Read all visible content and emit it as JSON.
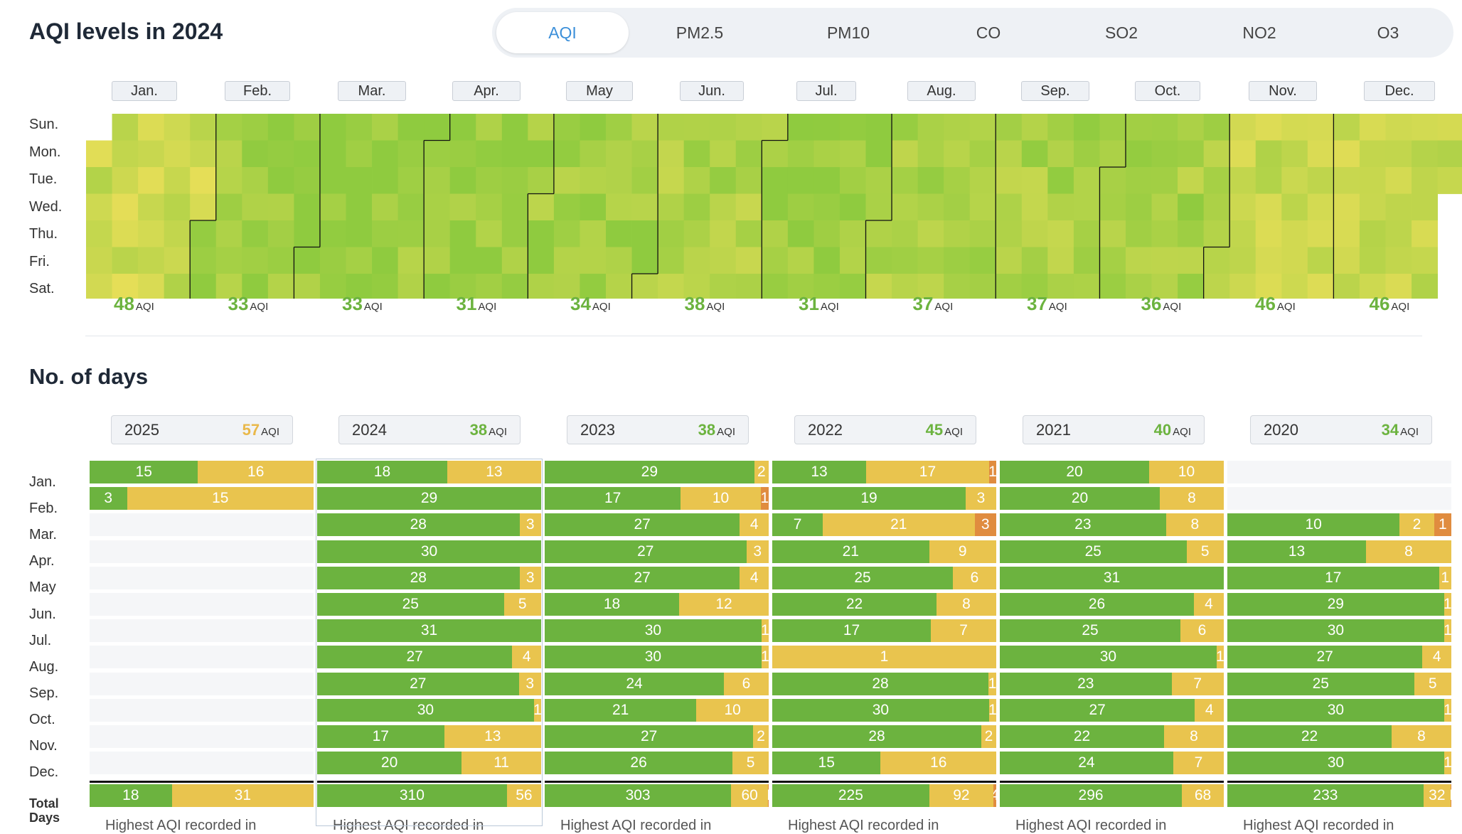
{
  "header": {
    "title": "AQI levels in 2024",
    "tabs": [
      "AQI",
      "PM2.5",
      "PM10",
      "CO",
      "SO2",
      "NO2",
      "O3"
    ],
    "active_tab": 0
  },
  "calendar": {
    "months": [
      "Jan.",
      "Feb.",
      "Mar.",
      "Apr.",
      "May",
      "Jun.",
      "Jul.",
      "Aug.",
      "Sep.",
      "Oct.",
      "Nov.",
      "Dec."
    ],
    "days": [
      "Sun.",
      "Mon.",
      "Tue.",
      "Wed.",
      "Thu.",
      "Fri.",
      "Sat."
    ],
    "monthly_avg": [
      48,
      33,
      33,
      31,
      34,
      38,
      31,
      37,
      37,
      36,
      46,
      46
    ],
    "unit": "AQI",
    "colors": {
      "good": "#8fcb3f",
      "moderate": "#f0e05a"
    }
  },
  "days_section": {
    "title": "No. of days",
    "unit": "AQI",
    "total_label_line1": "Total",
    "total_label_line2": "Days",
    "footer_text": "Highest AQI recorded in",
    "colors": {
      "good": "#6cb33f",
      "moderate": "#e9c44e",
      "unhealthy_sensitive": "#e08c3f"
    }
  },
  "chart_data": {
    "type": "bar",
    "title": "No. of days",
    "categories": [
      "Jan.",
      "Feb.",
      "Mar.",
      "Apr.",
      "May",
      "Jun.",
      "Jul.",
      "Aug.",
      "Sep.",
      "Oct.",
      "Nov.",
      "Dec."
    ],
    "series": [
      {
        "year": "2025",
        "aqi": 57,
        "months": [
          [
            15,
            16,
            0
          ],
          [
            3,
            15,
            0
          ],
          null,
          null,
          null,
          null,
          null,
          null,
          null,
          null,
          null,
          null
        ],
        "total": [
          18,
          31,
          0
        ]
      },
      {
        "year": "2024",
        "aqi": 38,
        "months": [
          [
            18,
            13,
            0
          ],
          [
            29,
            0,
            0
          ],
          [
            28,
            3,
            0
          ],
          [
            30,
            0,
            0
          ],
          [
            28,
            3,
            0
          ],
          [
            25,
            5,
            0
          ],
          [
            31,
            0,
            0
          ],
          [
            27,
            4,
            0
          ],
          [
            27,
            3,
            0
          ],
          [
            30,
            1,
            0
          ],
          [
            17,
            13,
            0
          ],
          [
            20,
            11,
            0
          ]
        ],
        "total": [
          310,
          56,
          0
        ]
      },
      {
        "year": "2023",
        "aqi": 38,
        "months": [
          [
            29,
            2,
            0
          ],
          [
            17,
            10,
            1
          ],
          [
            27,
            4,
            0
          ],
          [
            27,
            3,
            0
          ],
          [
            27,
            4,
            0
          ],
          [
            18,
            12,
            0
          ],
          [
            30,
            1,
            0
          ],
          [
            30,
            1,
            0
          ],
          [
            24,
            6,
            0
          ],
          [
            21,
            10,
            0
          ],
          [
            27,
            2,
            0
          ],
          [
            26,
            5,
            0
          ]
        ],
        "total": [
          303,
          60,
          1
        ]
      },
      {
        "year": "2022",
        "aqi": 45,
        "months": [
          [
            13,
            17,
            1
          ],
          [
            19,
            3,
            0
          ],
          [
            7,
            21,
            3
          ],
          [
            21,
            9,
            0
          ],
          [
            25,
            6,
            0
          ],
          [
            22,
            8,
            0
          ],
          [
            17,
            7,
            0
          ],
          [
            0,
            1,
            0
          ],
          [
            28,
            1,
            0
          ],
          [
            30,
            1,
            0
          ],
          [
            28,
            2,
            0
          ],
          [
            15,
            16,
            0
          ]
        ],
        "total": [
          225,
          92,
          4
        ]
      },
      {
        "year": "2021",
        "aqi": 40,
        "months": [
          [
            20,
            10,
            0
          ],
          [
            20,
            8,
            0
          ],
          [
            23,
            8,
            0
          ],
          [
            25,
            5,
            0
          ],
          [
            31,
            0,
            0
          ],
          [
            26,
            4,
            0
          ],
          [
            25,
            6,
            0
          ],
          [
            30,
            1,
            0
          ],
          [
            23,
            7,
            0
          ],
          [
            27,
            4,
            0
          ],
          [
            22,
            8,
            0
          ],
          [
            24,
            7,
            0
          ]
        ],
        "total": [
          296,
          68,
          0
        ]
      },
      {
        "year": "2020",
        "aqi": 34,
        "months": [
          null,
          null,
          [
            10,
            2,
            1
          ],
          [
            13,
            8,
            0
          ],
          [
            17,
            1,
            0
          ],
          [
            29,
            1,
            0
          ],
          [
            30,
            1,
            0
          ],
          [
            27,
            4,
            0
          ],
          [
            25,
            5,
            0
          ],
          [
            30,
            1,
            0
          ],
          [
            22,
            8,
            0
          ],
          [
            30,
            1,
            0
          ]
        ],
        "total": [
          233,
          32,
          1
        ]
      }
    ]
  }
}
